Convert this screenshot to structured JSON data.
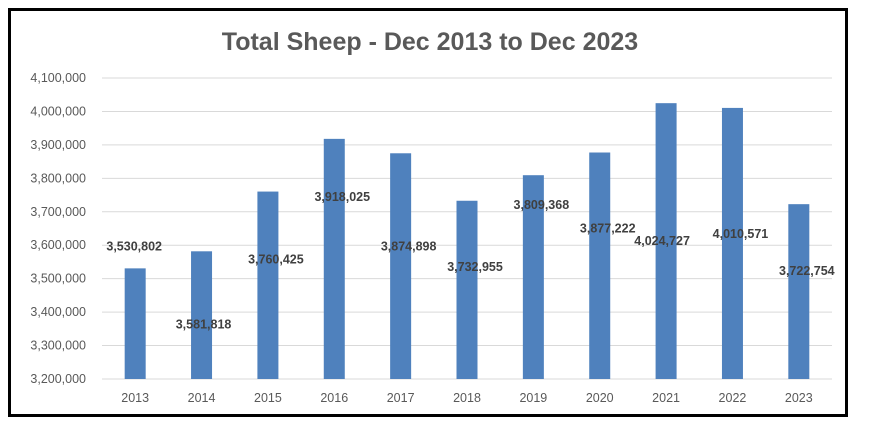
{
  "chart_data": {
    "type": "bar",
    "title": "Total Sheep - Dec 2013 to Dec 2023",
    "xlabel": "",
    "ylabel": "",
    "categories": [
      "2013",
      "2014",
      "2015",
      "2016",
      "2017",
      "2018",
      "2019",
      "2020",
      "2021",
      "2022",
      "2023"
    ],
    "values": [
      3530802,
      3581818,
      3760425,
      3918025,
      3874898,
      3732955,
      3809368,
      3877222,
      4024727,
      4010571,
      3722754
    ],
    "data_labels": [
      "3,530,802",
      "3,581,818",
      "3,760,425",
      "3,918,025",
      "3,874,898",
      "3,732,955",
      "3,809,368",
      "3,877,222",
      "4,024,727",
      "4,010,571",
      "3,722,754"
    ],
    "ylim": [
      3200000,
      4100000
    ],
    "y_ticks": [
      3200000,
      3300000,
      3400000,
      3500000,
      3600000,
      3700000,
      3800000,
      3900000,
      4000000,
      4100000
    ],
    "y_tick_labels": [
      "3,200,000",
      "3,300,000",
      "3,400,000",
      "3,500,000",
      "3,600,000",
      "3,700,000",
      "3,800,000",
      "3,900,000",
      "4,000,000",
      "4,100,000"
    ],
    "grid": true,
    "legend": "none",
    "bar_color": "#4f81bd"
  }
}
